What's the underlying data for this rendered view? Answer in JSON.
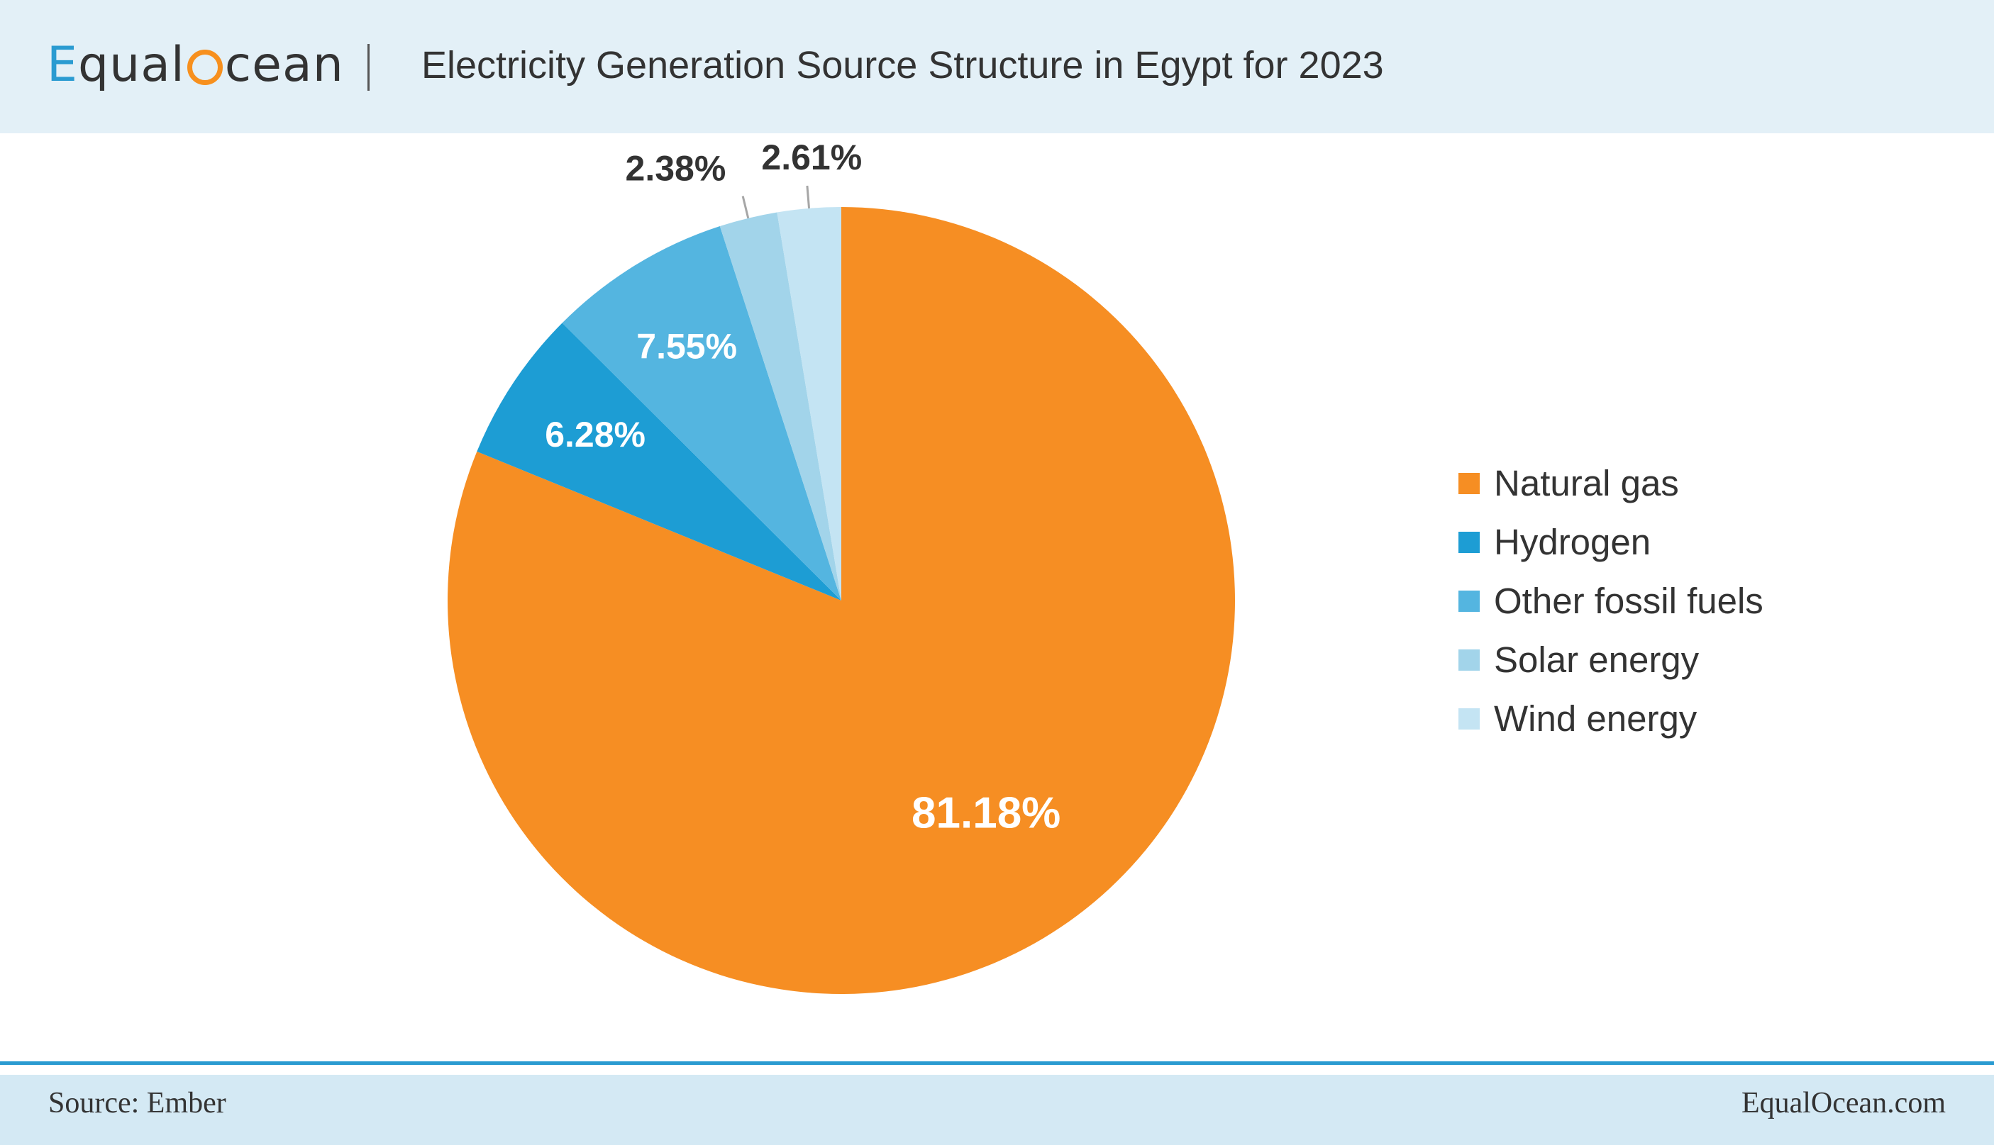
{
  "header": {
    "logo_prefix": "qual",
    "logo_suffix": "cean",
    "title": "Electricity Generation Source Structure in Egypt for 2023"
  },
  "footer": {
    "source": "Source: Ember",
    "site": "EqualOcean.com"
  },
  "chart_data": {
    "type": "pie",
    "title": "Electricity Generation Source Structure in Egypt for 2023",
    "categories": [
      "Natural gas",
      "Hydrogen",
      "Other fossil fuels",
      "Solar energy",
      "Wind energy"
    ],
    "values": [
      81.18,
      6.28,
      7.55,
      2.38,
      2.61
    ],
    "labels": [
      "81.18%",
      "6.28%",
      "7.55%",
      "2.38%",
      "2.61%"
    ],
    "colors": [
      "#f68e23",
      "#1d9dd4",
      "#54b5e0",
      "#a2d4ea",
      "#c4e4f3"
    ],
    "start": "12 o'clock",
    "direction": "clockwise",
    "legend_position": "right"
  }
}
